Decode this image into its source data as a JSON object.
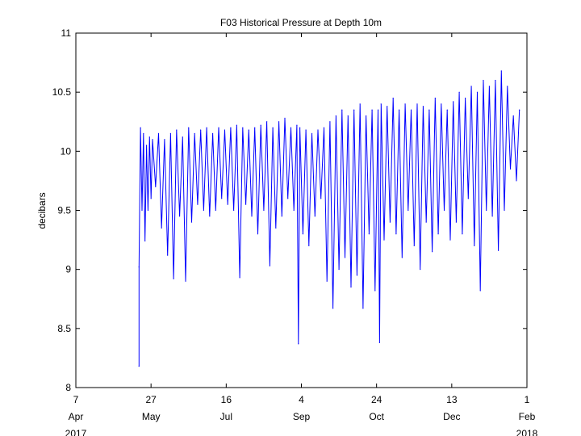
{
  "chart_data": {
    "type": "line",
    "title": "F03 Historical Pressure at Depth 10m",
    "xlabel": "",
    "ylabel": "decibars",
    "ylim": [
      8,
      11
    ],
    "yticks": [
      "8",
      "8.5",
      "9",
      "9.5",
      "10",
      "10.5",
      "11"
    ],
    "xlim": [
      "2017-04-07",
      "2018-02-01"
    ],
    "xticks": [
      {
        "date": "2017-04-07",
        "day": "7",
        "month": "Apr",
        "year": "2017"
      },
      {
        "date": "2017-05-27",
        "day": "27",
        "month": "May",
        "year": ""
      },
      {
        "date": "2017-07-16",
        "day": "16",
        "month": "Jul",
        "year": ""
      },
      {
        "date": "2017-09-04",
        "day": "4",
        "month": "Sep",
        "year": ""
      },
      {
        "date": "2017-10-24",
        "day": "24",
        "month": "Oct",
        "year": ""
      },
      {
        "date": "2017-12-13",
        "day": "13",
        "month": "Dec",
        "year": ""
      },
      {
        "date": "2018-02-01",
        "day": "1",
        "month": "Feb",
        "year": "2018"
      }
    ],
    "grid": false,
    "color": "#0000ff",
    "series": [
      {
        "name": "",
        "x": [
          "2017-05-19",
          "2017-05-19",
          "2017-05-20",
          "2017-05-21",
          "2017-05-22",
          "2017-05-23",
          "2017-05-24",
          "2017-05-25",
          "2017-05-26",
          "2017-05-27",
          "2017-05-28",
          "2017-05-30",
          "2017-06-01",
          "2017-06-03",
          "2017-06-05",
          "2017-06-07",
          "2017-06-09",
          "2017-06-11",
          "2017-06-13",
          "2017-06-15",
          "2017-06-17",
          "2017-06-19",
          "2017-06-21",
          "2017-06-23",
          "2017-06-25",
          "2017-06-27",
          "2017-06-29",
          "2017-07-01",
          "2017-07-03",
          "2017-07-05",
          "2017-07-07",
          "2017-07-09",
          "2017-07-11",
          "2017-07-13",
          "2017-07-15",
          "2017-07-17",
          "2017-07-19",
          "2017-07-21",
          "2017-07-23",
          "2017-07-25",
          "2017-07-27",
          "2017-07-29",
          "2017-07-31",
          "2017-08-02",
          "2017-08-04",
          "2017-08-06",
          "2017-08-08",
          "2017-08-10",
          "2017-08-12",
          "2017-08-14",
          "2017-08-16",
          "2017-08-18",
          "2017-08-20",
          "2017-08-22",
          "2017-08-24",
          "2017-08-26",
          "2017-08-28",
          "2017-08-30",
          "2017-09-01",
          "2017-09-02",
          "2017-09-03",
          "2017-09-05",
          "2017-09-07",
          "2017-09-09",
          "2017-09-11",
          "2017-09-13",
          "2017-09-15",
          "2017-09-17",
          "2017-09-19",
          "2017-09-21",
          "2017-09-23",
          "2017-09-25",
          "2017-09-27",
          "2017-09-29",
          "2017-10-01",
          "2017-10-03",
          "2017-10-05",
          "2017-10-07",
          "2017-10-09",
          "2017-10-11",
          "2017-10-13",
          "2017-10-15",
          "2017-10-17",
          "2017-10-19",
          "2017-10-21",
          "2017-10-23",
          "2017-10-25",
          "2017-10-26",
          "2017-10-27",
          "2017-10-29",
          "2017-10-31",
          "2017-11-02",
          "2017-11-04",
          "2017-11-06",
          "2017-11-08",
          "2017-11-10",
          "2017-11-12",
          "2017-11-14",
          "2017-11-16",
          "2017-11-18",
          "2017-11-20",
          "2017-11-22",
          "2017-11-24",
          "2017-11-26",
          "2017-11-28",
          "2017-11-30",
          "2017-12-02",
          "2017-12-04",
          "2017-12-06",
          "2017-12-08",
          "2017-12-10",
          "2017-12-12",
          "2017-12-14",
          "2017-12-16",
          "2017-12-18",
          "2017-12-20",
          "2017-12-22",
          "2017-12-24",
          "2017-12-26",
          "2017-12-28",
          "2017-12-30",
          "2018-01-01",
          "2018-01-03",
          "2018-01-05",
          "2018-01-07",
          "2018-01-09",
          "2018-01-11",
          "2018-01-13",
          "2018-01-15",
          "2018-01-17",
          "2018-01-19",
          "2018-01-21",
          "2018-01-23",
          "2018-01-25",
          "2018-01-27"
        ],
        "y": [
          8.18,
          9.02,
          10.2,
          9.5,
          10.15,
          9.24,
          10.05,
          9.5,
          10.12,
          9.6,
          10.1,
          9.7,
          10.15,
          9.35,
          10.1,
          9.12,
          10.15,
          8.92,
          10.18,
          9.45,
          10.12,
          8.9,
          10.2,
          9.4,
          10.15,
          9.55,
          10.18,
          9.5,
          10.2,
          9.45,
          10.15,
          9.5,
          10.2,
          9.6,
          10.18,
          9.55,
          10.2,
          9.5,
          10.22,
          8.93,
          10.2,
          9.55,
          10.18,
          9.45,
          10.2,
          9.3,
          10.22,
          9.5,
          10.25,
          9.03,
          10.2,
          9.35,
          10.25,
          9.45,
          10.28,
          9.6,
          10.2,
          9.5,
          10.22,
          8.37,
          10.2,
          9.3,
          10.18,
          9.2,
          10.15,
          9.45,
          10.18,
          9.6,
          10.2,
          8.9,
          10.25,
          8.67,
          10.3,
          9.0,
          10.35,
          9.1,
          10.3,
          8.85,
          10.35,
          8.95,
          10.4,
          8.67,
          10.3,
          9.3,
          10.35,
          8.82,
          10.35,
          8.38,
          10.4,
          9.25,
          10.38,
          9.4,
          10.45,
          9.3,
          10.35,
          9.1,
          10.4,
          9.5,
          10.35,
          9.2,
          10.4,
          9.0,
          10.38,
          9.4,
          10.35,
          9.15,
          10.45,
          9.3,
          10.4,
          9.5,
          10.35,
          9.25,
          10.42,
          9.4,
          10.5,
          9.3,
          10.45,
          9.6,
          10.55,
          9.2,
          10.5,
          8.82,
          10.6,
          9.5,
          10.55,
          9.45,
          10.6,
          9.16,
          10.68,
          9.5,
          10.55,
          9.85,
          10.3,
          9.75,
          10.35
        ]
      }
    ]
  }
}
